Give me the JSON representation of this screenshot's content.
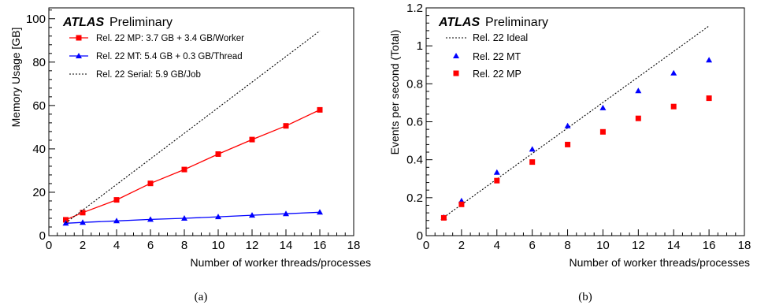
{
  "chart_data": [
    {
      "type": "line",
      "atlas_label": "ATLAS",
      "status_label": "Preliminary",
      "xlabel": "Number of worker threads/processes",
      "ylabel": "Memory Usage [GB]",
      "xlim": [
        0,
        18
      ],
      "ylim": [
        0,
        105
      ],
      "x_ticks": [
        "0",
        "2",
        "4",
        "6",
        "8",
        "10",
        "12",
        "14",
        "16",
        "18"
      ],
      "y_ticks": [
        "0",
        "20",
        "40",
        "60",
        "80",
        "100"
      ],
      "x_tick_values": [
        0,
        2,
        4,
        6,
        8,
        10,
        12,
        14,
        16,
        18
      ],
      "y_tick_values": [
        0,
        20,
        40,
        60,
        80,
        100
      ],
      "grid": false,
      "legend_position": "top-left",
      "caption": "(a)",
      "series": [
        {
          "name": "Rel. 22 MP: 3.7 GB + 3.4 GB/Worker",
          "color": "#ff0000",
          "marker": "square",
          "line": "solid",
          "x": [
            1,
            2,
            4,
            6,
            8,
            10,
            12,
            14,
            16
          ],
          "y": [
            7.3,
            10.6,
            16.5,
            24.1,
            30.5,
            37.6,
            44.3,
            50.6,
            58.0
          ]
        },
        {
          "name": "Rel. 22 MT: 5.4 GB + 0.3 GB/Thread",
          "color": "#0000ff",
          "marker": "triangle",
          "line": "solid",
          "x": [
            1,
            2,
            4,
            6,
            8,
            10,
            12,
            14,
            16
          ],
          "y": [
            5.7,
            6.1,
            6.8,
            7.5,
            8.0,
            8.7,
            9.4,
            10.1,
            10.8
          ]
        },
        {
          "name": "Rel. 22 Serial: 5.9 GB/Job",
          "color": "#000000",
          "marker": "none",
          "line": "dotted",
          "x": [
            1,
            16
          ],
          "y": [
            5.9,
            94.4
          ]
        }
      ]
    },
    {
      "type": "scatter",
      "atlas_label": "ATLAS",
      "status_label": "Preliminary",
      "xlabel": "Number of worker threads/processes",
      "ylabel": "Events per second (Total)",
      "xlim": [
        0,
        18
      ],
      "ylim": [
        0,
        1.2
      ],
      "x_ticks": [
        "0",
        "2",
        "4",
        "6",
        "8",
        "10",
        "12",
        "14",
        "16",
        "18"
      ],
      "y_ticks": [
        "0",
        "0.2",
        "0.4",
        "0.6",
        "0.8",
        "1",
        "1.2"
      ],
      "x_tick_values": [
        0,
        2,
        4,
        6,
        8,
        10,
        12,
        14,
        16,
        18
      ],
      "y_tick_values": [
        0,
        0.2,
        0.4,
        0.6,
        0.8,
        1.0,
        1.2
      ],
      "grid": false,
      "legend_position": "top-left",
      "caption": "(b)",
      "series": [
        {
          "name": "Rel. 22 Ideal",
          "color": "#000000",
          "marker": "none",
          "line": "dotted",
          "x": [
            1,
            16
          ],
          "y": [
            0.0962,
            1.105
          ]
        },
        {
          "name": "Rel. 22 MT",
          "color": "#0000ff",
          "marker": "triangle",
          "line": "none",
          "x": [
            1,
            2,
            4,
            6,
            8,
            10,
            12,
            14,
            16
          ],
          "y": [
            0.096,
            0.183,
            0.333,
            0.455,
            0.578,
            0.673,
            0.763,
            0.856,
            0.925
          ]
        },
        {
          "name": "Rel. 22 MP",
          "color": "#ff0000",
          "marker": "square",
          "line": "none",
          "x": [
            1,
            2,
            4,
            6,
            8,
            10,
            12,
            14,
            16
          ],
          "y": [
            0.094,
            0.165,
            0.29,
            0.388,
            0.48,
            0.547,
            0.618,
            0.68,
            0.724
          ]
        }
      ]
    }
  ]
}
